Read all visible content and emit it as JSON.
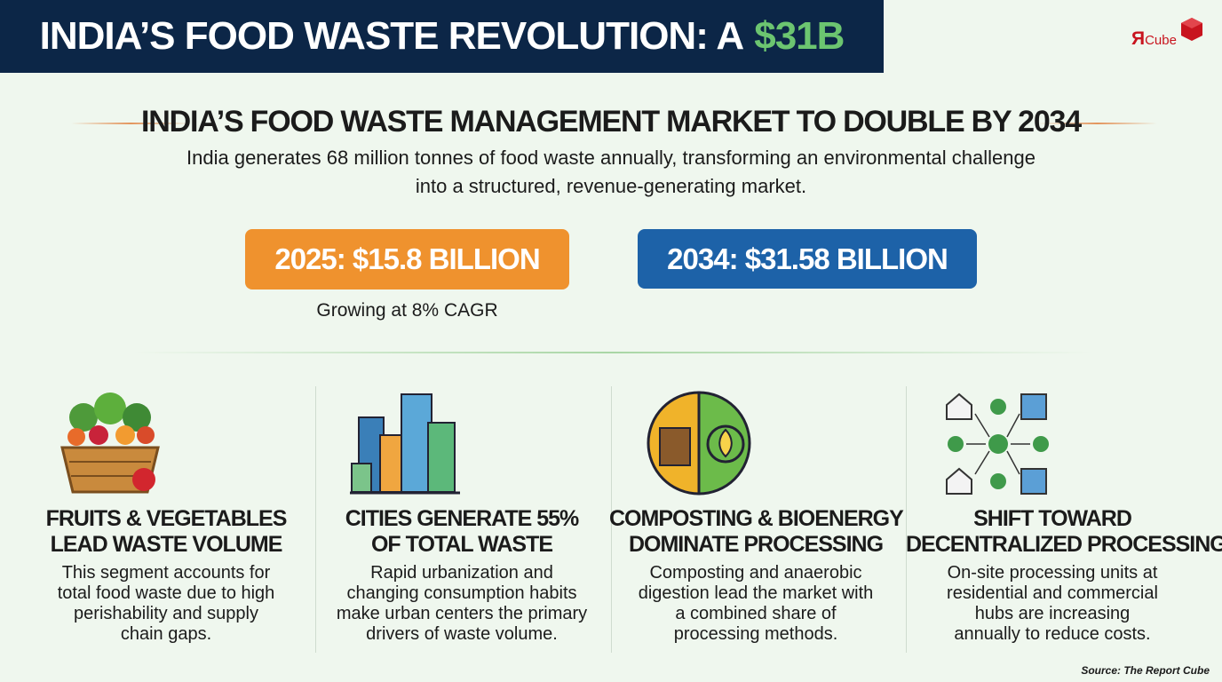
{
  "title": {
    "prefix": "INDIA’S FOOD WASTE REVOLUTION: A",
    "highlight": "$31B"
  },
  "logo": {
    "mark": "Я",
    "name": "Cube"
  },
  "headline": "INDIA’S FOOD WASTE MANAGEMENT MARKET TO DOUBLE BY 2034",
  "intro": [
    "India generates 68 million tonnes of food waste annually, transforming an environmental challenge",
    "into a structured, revenue-generating market."
  ],
  "stats": [
    {
      "label": "2025: $15.8 BILLION",
      "note": "Growing at 8% CAGR"
    },
    {
      "label": "2034: $31.58 BILLION"
    }
  ],
  "cards": [
    {
      "title": [
        "FRUITS & VEGETABLES",
        "LEAD WASTE VOLUME"
      ],
      "text": [
        "This segment accounts for",
        "total food waste due to high",
        "perishability and supply",
        "chain gaps."
      ]
    },
    {
      "title": [
        "CITIES GENERATE 55%",
        "OF TOTAL WASTE"
      ],
      "text": [
        "Rapid urbanization and",
        "changing consumption habits",
        "make urban centers the primary",
        "drivers of waste volume."
      ]
    },
    {
      "title": [
        "COMPOSTING & BIOENERGY",
        "DOMINATE PROCESSING"
      ],
      "text": [
        "Composting and anaerobic",
        "digestion lead the market with",
        "a combined share of",
        "processing methods."
      ]
    },
    {
      "title": [
        "SHIFT TOWARD",
        "DECENTRALIZED PROCESSING"
      ],
      "text": [
        "On-site processing units at",
        "residential and commercial",
        "hubs are increasing",
        "annually to reduce costs."
      ]
    }
  ],
  "source": "Source: The Report Cube"
}
